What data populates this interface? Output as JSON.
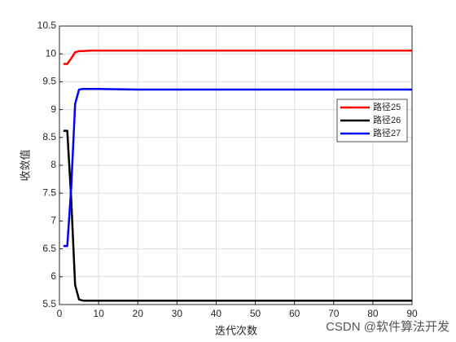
{
  "chart_data": {
    "type": "line",
    "xlabel": "迭代次数",
    "ylabel": "收敛值",
    "x": [
      1,
      2,
      3,
      4,
      5,
      6,
      8,
      10,
      20,
      30,
      40,
      50,
      60,
      70,
      80,
      90
    ],
    "series": [
      {
        "name": "路径25",
        "color": "#ff0000",
        "values": [
          9.82,
          9.82,
          9.92,
          10.03,
          10.05,
          10.05,
          10.06,
          10.06,
          10.06,
          10.06,
          10.06,
          10.06,
          10.06,
          10.06,
          10.06,
          10.06
        ]
      },
      {
        "name": "路径26",
        "color": "#000000",
        "values": [
          8.62,
          8.62,
          7.4,
          5.85,
          5.59,
          5.57,
          5.57,
          5.57,
          5.57,
          5.57,
          5.57,
          5.57,
          5.57,
          5.57,
          5.57,
          5.57
        ]
      },
      {
        "name": "路径27",
        "color": "#0000ff",
        "values": [
          6.55,
          6.55,
          7.6,
          9.1,
          9.36,
          9.37,
          9.37,
          9.37,
          9.36,
          9.36,
          9.36,
          9.36,
          9.36,
          9.36,
          9.36,
          9.36
        ]
      }
    ],
    "xlim": [
      0,
      90
    ],
    "xticks": [
      0,
      10,
      20,
      30,
      40,
      50,
      60,
      70,
      80,
      90
    ],
    "ylim": [
      5.5,
      10.5
    ],
    "yticks": [
      5.5,
      6,
      6.5,
      7,
      7.5,
      8,
      8.5,
      9,
      9.5,
      10,
      10.5
    ],
    "grid": true,
    "legend_position": "east",
    "watermark": "CSDN @软件算法开发"
  }
}
